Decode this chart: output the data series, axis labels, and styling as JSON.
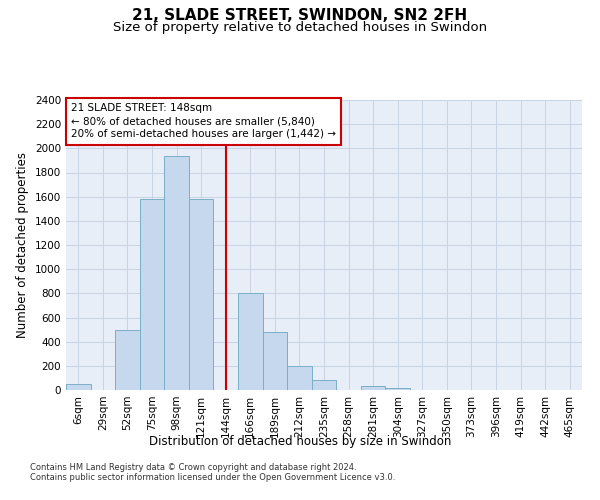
{
  "title_line1": "21, SLADE STREET, SWINDON, SN2 2FH",
  "title_line2": "Size of property relative to detached houses in Swindon",
  "xlabel": "Distribution of detached houses by size in Swindon",
  "ylabel": "Number of detached properties",
  "footer_line1": "Contains HM Land Registry data © Crown copyright and database right 2024.",
  "footer_line2": "Contains public sector information licensed under the Open Government Licence v3.0.",
  "categories": [
    "6sqm",
    "29sqm",
    "52sqm",
    "75sqm",
    "98sqm",
    "121sqm",
    "144sqm",
    "166sqm",
    "189sqm",
    "212sqm",
    "235sqm",
    "258sqm",
    "281sqm",
    "304sqm",
    "327sqm",
    "350sqm",
    "373sqm",
    "396sqm",
    "419sqm",
    "442sqm",
    "465sqm"
  ],
  "values": [
    50,
    0,
    500,
    1580,
    1940,
    1580,
    0,
    800,
    480,
    195,
    80,
    0,
    30,
    20,
    0,
    0,
    0,
    0,
    0,
    0,
    0
  ],
  "bar_color": "#c5d8ed",
  "bar_edge_color": "#7aafc8",
  "grid_color": "#c8d4e4",
  "background_color": "#e8eef8",
  "vline_x": 6,
  "vline_color": "#cc0000",
  "annotation_text": "21 SLADE STREET: 148sqm\n← 80% of detached houses are smaller (5,840)\n20% of semi-detached houses are larger (1,442) →",
  "annotation_box_color": "#ffffff",
  "annotation_box_edge": "#cc0000",
  "ylim": [
    0,
    2400
  ],
  "yticks": [
    0,
    200,
    400,
    600,
    800,
    1000,
    1200,
    1400,
    1600,
    1800,
    2000,
    2200,
    2400
  ],
  "title_fontsize": 11,
  "subtitle_fontsize": 9.5,
  "axis_label_fontsize": 8.5,
  "tick_fontsize": 7.5,
  "annotation_fontsize": 7.5,
  "footer_fontsize": 6.0
}
